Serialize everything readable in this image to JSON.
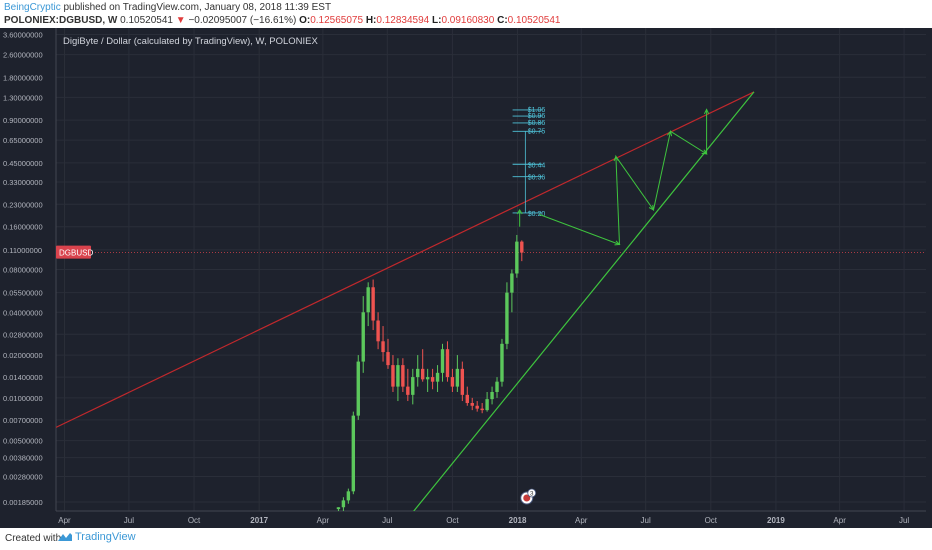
{
  "header": {
    "author": "BeingCryptic",
    "published": "published on TradingView.com, January 08, 2018 11:39 EST",
    "symbol": "POLONIEX:DGBUSD, W",
    "last": "0.10520541",
    "arrow": "▼",
    "change": "−0.02095007 (−16.61%)",
    "o_label": "O:",
    "o_value": "0.12565075",
    "h_label": "H:",
    "h_value": "0.12834594",
    "l_label": "L:",
    "l_value": "0.09160830",
    "c_label": "C:",
    "c_value": "0.10520541"
  },
  "footer": {
    "created": "Created with",
    "brand": "TradingView"
  },
  "colors": {
    "background": "#1e222d",
    "grid": "#2a2e39",
    "up": "#26a69a",
    "upbright": "#5cc85c",
    "down": "#ef5350",
    "resistance": "#c0282c",
    "support": "#3ec43e",
    "fib": "#4fc3d9",
    "price_label": "#d9434d"
  },
  "chart_data": {
    "type": "candlestick",
    "title": "DigiByte / Dollar (calculated by TradingView), W, POLONIEX",
    "price_label": "DGBUSD",
    "y_scale": "log",
    "ylim": [
      0.0016,
      4.0
    ],
    "xlim": [
      "2016-03-20",
      "2019-08-01"
    ],
    "y_ticks": [
      3.6,
      2.6,
      1.8,
      1.3,
      0.9,
      0.65,
      0.45,
      0.33,
      0.23,
      0.16,
      0.11,
      0.08,
      0.055,
      0.04,
      0.028,
      0.02,
      0.014,
      0.01,
      0.007,
      0.005,
      0.0038,
      0.0028,
      0.00185
    ],
    "y_tick_labels": [
      "3.60000000",
      "2.60000000",
      "1.80000000",
      "1.30000000",
      "0.90000000",
      "0.65000000",
      "0.45000000",
      "0.33000000",
      "0.23000000",
      "0.16000000",
      "0.11000000",
      "0.08000000",
      "0.05500000",
      "0.04000000",
      "0.02800000",
      "0.02000000",
      "0.01400000",
      "0.01000000",
      "0.00700000",
      "0.00500000",
      "0.00380000",
      "0.00280000",
      "0.00185000"
    ],
    "x_ticks": [
      {
        "date": "2016-04-01",
        "label": "Apr"
      },
      {
        "date": "2016-07-01",
        "label": "Jul"
      },
      {
        "date": "2016-10-01",
        "label": "Oct"
      },
      {
        "date": "2017-01-01",
        "label": "2017"
      },
      {
        "date": "2017-04-01",
        "label": "Apr"
      },
      {
        "date": "2017-07-01",
        "label": "Jul"
      },
      {
        "date": "2017-10-01",
        "label": "Oct"
      },
      {
        "date": "2018-01-01",
        "label": "2018"
      },
      {
        "date": "2018-04-01",
        "label": "Apr"
      },
      {
        "date": "2018-07-01",
        "label": "Jul"
      },
      {
        "date": "2018-10-01",
        "label": "Oct"
      },
      {
        "date": "2019-01-01",
        "label": "2019"
      },
      {
        "date": "2019-04-01",
        "label": "Apr"
      },
      {
        "date": "2019-07-01",
        "label": "Jul"
      }
    ],
    "current_price": 0.1052,
    "candles": [
      {
        "t": "2017-04-23",
        "o": 0.00165,
        "h": 0.0017,
        "l": 0.0016,
        "c": 0.0017
      },
      {
        "t": "2017-04-30",
        "o": 0.0017,
        "h": 0.002,
        "l": 0.0016,
        "c": 0.0019
      },
      {
        "t": "2017-05-07",
        "o": 0.0019,
        "h": 0.0023,
        "l": 0.0018,
        "c": 0.0022
      },
      {
        "t": "2017-05-14",
        "o": 0.0022,
        "h": 0.008,
        "l": 0.0021,
        "c": 0.0075
      },
      {
        "t": "2017-05-21",
        "o": 0.0075,
        "h": 0.02,
        "l": 0.007,
        "c": 0.018
      },
      {
        "t": "2017-05-28",
        "o": 0.018,
        "h": 0.052,
        "l": 0.015,
        "c": 0.04
      },
      {
        "t": "2017-06-04",
        "o": 0.04,
        "h": 0.065,
        "l": 0.032,
        "c": 0.06
      },
      {
        "t": "2017-06-11",
        "o": 0.06,
        "h": 0.068,
        "l": 0.03,
        "c": 0.035
      },
      {
        "t": "2017-06-18",
        "o": 0.035,
        "h": 0.04,
        "l": 0.022,
        "c": 0.025
      },
      {
        "t": "2017-06-25",
        "o": 0.025,
        "h": 0.032,
        "l": 0.018,
        "c": 0.021
      },
      {
        "t": "2017-07-02",
        "o": 0.021,
        "h": 0.026,
        "l": 0.016,
        "c": 0.017
      },
      {
        "t": "2017-07-09",
        "o": 0.017,
        "h": 0.02,
        "l": 0.011,
        "c": 0.012
      },
      {
        "t": "2017-07-16",
        "o": 0.012,
        "h": 0.019,
        "l": 0.0095,
        "c": 0.017
      },
      {
        "t": "2017-07-23",
        "o": 0.017,
        "h": 0.019,
        "l": 0.011,
        "c": 0.012
      },
      {
        "t": "2017-07-30",
        "o": 0.012,
        "h": 0.016,
        "l": 0.0095,
        "c": 0.0105
      },
      {
        "t": "2017-08-06",
        "o": 0.0105,
        "h": 0.016,
        "l": 0.009,
        "c": 0.014
      },
      {
        "t": "2017-08-13",
        "o": 0.014,
        "h": 0.02,
        "l": 0.012,
        "c": 0.016
      },
      {
        "t": "2017-08-20",
        "o": 0.016,
        "h": 0.022,
        "l": 0.013,
        "c": 0.0135
      },
      {
        "t": "2017-08-27",
        "o": 0.0135,
        "h": 0.016,
        "l": 0.011,
        "c": 0.014
      },
      {
        "t": "2017-09-03",
        "o": 0.014,
        "h": 0.016,
        "l": 0.0115,
        "c": 0.013
      },
      {
        "t": "2017-09-10",
        "o": 0.013,
        "h": 0.017,
        "l": 0.011,
        "c": 0.015
      },
      {
        "t": "2017-09-17",
        "o": 0.015,
        "h": 0.024,
        "l": 0.013,
        "c": 0.022
      },
      {
        "t": "2017-09-24",
        "o": 0.022,
        "h": 0.025,
        "l": 0.013,
        "c": 0.014
      },
      {
        "t": "2017-10-01",
        "o": 0.014,
        "h": 0.016,
        "l": 0.011,
        "c": 0.012
      },
      {
        "t": "2017-10-08",
        "o": 0.012,
        "h": 0.02,
        "l": 0.011,
        "c": 0.016
      },
      {
        "t": "2017-10-15",
        "o": 0.016,
        "h": 0.018,
        "l": 0.0095,
        "c": 0.0105
      },
      {
        "t": "2017-10-22",
        "o": 0.0105,
        "h": 0.012,
        "l": 0.0088,
        "c": 0.0092
      },
      {
        "t": "2017-10-29",
        "o": 0.0092,
        "h": 0.01,
        "l": 0.0082,
        "c": 0.0088
      },
      {
        "t": "2017-11-05",
        "o": 0.0088,
        "h": 0.0095,
        "l": 0.008,
        "c": 0.0084
      },
      {
        "t": "2017-11-12",
        "o": 0.0084,
        "h": 0.0092,
        "l": 0.0078,
        "c": 0.0082
      },
      {
        "t": "2017-11-19",
        "o": 0.0082,
        "h": 0.011,
        "l": 0.008,
        "c": 0.0098
      },
      {
        "t": "2017-11-26",
        "o": 0.0098,
        "h": 0.012,
        "l": 0.009,
        "c": 0.011
      },
      {
        "t": "2017-12-03",
        "o": 0.011,
        "h": 0.014,
        "l": 0.01,
        "c": 0.013
      },
      {
        "t": "2017-12-10",
        "o": 0.013,
        "h": 0.026,
        "l": 0.012,
        "c": 0.024
      },
      {
        "t": "2017-12-17",
        "o": 0.024,
        "h": 0.065,
        "l": 0.022,
        "c": 0.055
      },
      {
        "t": "2017-12-24",
        "o": 0.055,
        "h": 0.08,
        "l": 0.04,
        "c": 0.075
      },
      {
        "t": "2017-12-31",
        "o": 0.075,
        "h": 0.14,
        "l": 0.07,
        "c": 0.1257
      },
      {
        "t": "2018-01-07",
        "o": 0.1257,
        "h": 0.1283,
        "l": 0.0916,
        "c": 0.1052
      }
    ],
    "resistance_line": [
      {
        "t": "2016-03-20",
        "y": 0.0062
      },
      {
        "t": "2018-12-01",
        "y": 1.42
      }
    ],
    "support_line": [
      {
        "t": "2017-05-30",
        "y": 0.0006
      },
      {
        "t": "2018-12-01",
        "y": 1.42
      }
    ],
    "fib_levels": [
      {
        "y": 1.06,
        "label": "$1.06"
      },
      {
        "y": 0.96,
        "label": "$0.96"
      },
      {
        "y": 0.86,
        "label": "$0.86"
      },
      {
        "y": 0.75,
        "label": "$0.75"
      },
      {
        "y": 0.44,
        "label": "$0.44"
      },
      {
        "y": 0.36,
        "label": "$0.36"
      },
      {
        "y": 0.2,
        "label": "$0.20"
      }
    ],
    "fib_range": [
      "2017-12-25",
      "2018-02-05"
    ],
    "projection_path": [
      {
        "t": "2018-02-01",
        "y": 0.195
      },
      {
        "t": "2018-05-25",
        "y": 0.12
      },
      {
        "t": "2018-05-20",
        "y": 0.5
      },
      {
        "t": "2018-07-12",
        "y": 0.21
      },
      {
        "t": "2018-08-05",
        "y": 0.75
      },
      {
        "t": "2018-09-25",
        "y": 0.52
      },
      {
        "t": "2018-09-25",
        "y": 1.07
      }
    ],
    "arrow_up": {
      "t": "2018-01-04",
      "from": 0.16,
      "to": 0.21
    },
    "event_badge": {
      "t": "2018-01-14",
      "count": "3"
    }
  }
}
